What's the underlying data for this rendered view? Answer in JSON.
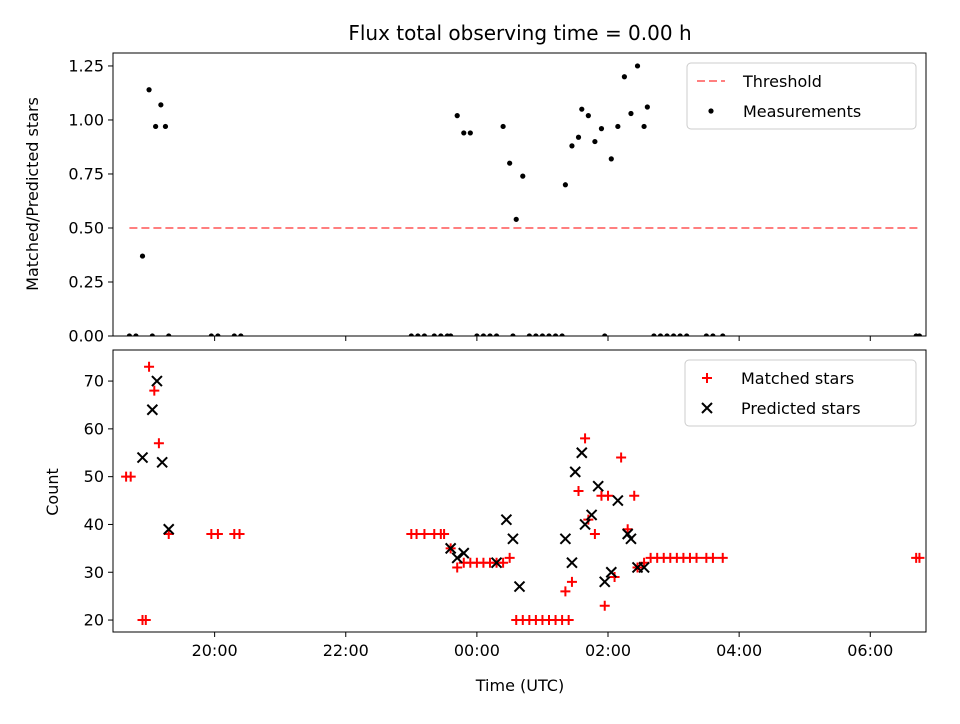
{
  "chart_data": [
    {
      "type": "scatter",
      "title": "Flux total observing time = 0.00 h",
      "xlabel": "",
      "ylabel": "Matched/Predicted stars",
      "x_unit": "hours since 19:00 UTC",
      "xlim": [
        -0.55,
        11.85
      ],
      "ylim": [
        0,
        1.31
      ],
      "yticks": [
        0.0,
        0.25,
        0.5,
        0.75,
        1.0,
        1.25
      ],
      "ytick_labels": [
        "0.00",
        "0.25",
        "0.50",
        "0.75",
        "1.00",
        "1.25"
      ],
      "legend": {
        "position": "top-right",
        "entries": [
          "Threshold",
          "Measurements"
        ]
      },
      "threshold": {
        "name": "Threshold",
        "y": 0.5,
        "x_range": [
          -0.3,
          11.75
        ],
        "color": "#ff7f7f"
      },
      "series": [
        {
          "name": "Measurements",
          "color": "#000000",
          "points": [
            [
              -0.3,
              0
            ],
            [
              -0.2,
              0
            ],
            [
              -0.1,
              0.37
            ],
            [
              0.05,
              0
            ],
            [
              0.0,
              1.14
            ],
            [
              0.1,
              0.97
            ],
            [
              0.18,
              1.07
            ],
            [
              0.25,
              0.97
            ],
            [
              0.3,
              0
            ],
            [
              0.95,
              0
            ],
            [
              1.05,
              0
            ],
            [
              1.3,
              0
            ],
            [
              1.4,
              0
            ],
            [
              4.0,
              0
            ],
            [
              4.1,
              0
            ],
            [
              4.2,
              0
            ],
            [
              4.35,
              0
            ],
            [
              4.45,
              0
            ],
            [
              4.55,
              0
            ],
            [
              4.6,
              0
            ],
            [
              4.7,
              1.02
            ],
            [
              4.8,
              0.94
            ],
            [
              4.9,
              0.94
            ],
            [
              5.0,
              0
            ],
            [
              5.1,
              0
            ],
            [
              5.2,
              0
            ],
            [
              5.3,
              0
            ],
            [
              5.4,
              0.97
            ],
            [
              5.5,
              0.8
            ],
            [
              5.55,
              0
            ],
            [
              5.6,
              0.54
            ],
            [
              5.7,
              0.74
            ],
            [
              5.8,
              0
            ],
            [
              5.9,
              0
            ],
            [
              6.0,
              0
            ],
            [
              6.1,
              0
            ],
            [
              6.2,
              0
            ],
            [
              6.3,
              0
            ],
            [
              6.35,
              0.7
            ],
            [
              6.45,
              0.88
            ],
            [
              6.55,
              0.92
            ],
            [
              6.6,
              1.05
            ],
            [
              6.7,
              1.02
            ],
            [
              6.8,
              0.9
            ],
            [
              6.9,
              0.96
            ],
            [
              6.95,
              0
            ],
            [
              7.05,
              0.82
            ],
            [
              7.15,
              0.97
            ],
            [
              7.25,
              1.2
            ],
            [
              7.35,
              1.03
            ],
            [
              7.45,
              1.25
            ],
            [
              7.55,
              0.97
            ],
            [
              7.6,
              1.06
            ],
            [
              7.7,
              0
            ],
            [
              7.8,
              0
            ],
            [
              7.9,
              0
            ],
            [
              8.0,
              0
            ],
            [
              8.1,
              0
            ],
            [
              8.2,
              0
            ],
            [
              8.5,
              0
            ],
            [
              8.6,
              0
            ],
            [
              8.75,
              0
            ],
            [
              11.7,
              0
            ],
            [
              11.75,
              0
            ]
          ]
        }
      ]
    },
    {
      "type": "scatter",
      "title": "",
      "xlabel": "Time (UTC)",
      "ylabel": "Count",
      "x_unit": "hours since 19:00 UTC",
      "xlim": [
        -0.55,
        11.85
      ],
      "ylim": [
        17.5,
        76.5
      ],
      "yticks": [
        20,
        30,
        40,
        50,
        60,
        70
      ],
      "ytick_labels": [
        "20",
        "30",
        "40",
        "50",
        "60",
        "70"
      ],
      "xticks": [
        1,
        3,
        5,
        7,
        9,
        11
      ],
      "xtick_labels": [
        "20:00",
        "22:00",
        "00:00",
        "02:00",
        "04:00",
        "06:00"
      ],
      "legend": {
        "position": "top-right",
        "entries": [
          "Matched stars",
          "Predicted stars"
        ]
      },
      "series": [
        {
          "name": "Matched stars",
          "marker": "plus",
          "color": "#ff0000",
          "points": [
            [
              -0.35,
              50
            ],
            [
              -0.28,
              50
            ],
            [
              -0.1,
              20
            ],
            [
              -0.05,
              20
            ],
            [
              0.0,
              73
            ],
            [
              0.08,
              68
            ],
            [
              0.15,
              57
            ],
            [
              0.3,
              38
            ],
            [
              0.95,
              38
            ],
            [
              1.05,
              38
            ],
            [
              1.3,
              38
            ],
            [
              1.38,
              38
            ],
            [
              4.0,
              38
            ],
            [
              4.08,
              38
            ],
            [
              4.2,
              38
            ],
            [
              4.35,
              38
            ],
            [
              4.45,
              38
            ],
            [
              4.5,
              38
            ],
            [
              4.6,
              35
            ],
            [
              4.7,
              31
            ],
            [
              4.8,
              32
            ],
            [
              4.9,
              32
            ],
            [
              5.0,
              32
            ],
            [
              5.1,
              32
            ],
            [
              5.2,
              32
            ],
            [
              5.3,
              32
            ],
            [
              5.4,
              32
            ],
            [
              5.5,
              33
            ],
            [
              5.6,
              20
            ],
            [
              5.7,
              20
            ],
            [
              5.8,
              20
            ],
            [
              5.9,
              20
            ],
            [
              6.0,
              20
            ],
            [
              6.1,
              20
            ],
            [
              6.2,
              20
            ],
            [
              6.3,
              20
            ],
            [
              6.4,
              20
            ],
            [
              6.35,
              26
            ],
            [
              6.45,
              28
            ],
            [
              6.55,
              47
            ],
            [
              6.65,
              58
            ],
            [
              6.7,
              41
            ],
            [
              6.8,
              38
            ],
            [
              6.9,
              46
            ],
            [
              7.0,
              46
            ],
            [
              6.95,
              23
            ],
            [
              7.1,
              29
            ],
            [
              7.2,
              54
            ],
            [
              7.3,
              39
            ],
            [
              7.4,
              46
            ],
            [
              7.45,
              31
            ],
            [
              7.55,
              32
            ],
            [
              7.65,
              33
            ],
            [
              7.75,
              33
            ],
            [
              7.85,
              33
            ],
            [
              7.95,
              33
            ],
            [
              8.05,
              33
            ],
            [
              8.15,
              33
            ],
            [
              8.25,
              33
            ],
            [
              8.35,
              33
            ],
            [
              8.5,
              33
            ],
            [
              8.6,
              33
            ],
            [
              8.75,
              33
            ],
            [
              11.7,
              33
            ],
            [
              11.75,
              33
            ]
          ]
        },
        {
          "name": "Predicted stars",
          "marker": "x",
          "color": "#000000",
          "points": [
            [
              -0.1,
              54
            ],
            [
              0.05,
              64
            ],
            [
              0.12,
              70
            ],
            [
              0.2,
              53
            ],
            [
              0.3,
              39
            ],
            [
              4.6,
              35
            ],
            [
              4.7,
              33
            ],
            [
              4.8,
              34
            ],
            [
              5.3,
              32
            ],
            [
              5.45,
              41
            ],
            [
              5.55,
              37
            ],
            [
              5.65,
              27
            ],
            [
              6.35,
              37
            ],
            [
              6.45,
              32
            ],
            [
              6.5,
              51
            ],
            [
              6.6,
              55
            ],
            [
              6.65,
              40
            ],
            [
              6.75,
              42
            ],
            [
              6.85,
              48
            ],
            [
              6.95,
              28
            ],
            [
              7.05,
              30
            ],
            [
              7.15,
              45
            ],
            [
              7.3,
              38
            ],
            [
              7.35,
              37
            ],
            [
              7.45,
              31
            ],
            [
              7.55,
              31
            ]
          ]
        }
      ]
    }
  ]
}
